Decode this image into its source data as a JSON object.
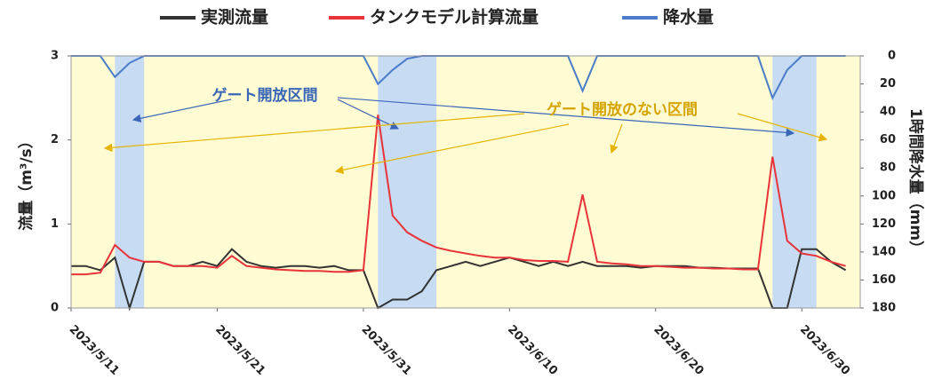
{
  "chart_data": {
    "type": "line",
    "series": [
      {
        "name": "実測流量",
        "color": "#333333",
        "values": [
          0.5,
          0.5,
          0.45,
          0.6,
          0.0,
          0.55,
          0.55,
          0.5,
          0.5,
          0.55,
          0.5,
          0.7,
          0.55,
          0.5,
          0.48,
          0.5,
          0.5,
          0.48,
          0.5,
          0.45,
          0.45,
          0.0,
          0.1,
          0.1,
          0.2,
          0.45,
          0.5,
          0.55,
          0.5,
          0.55,
          0.6,
          0.55,
          0.5,
          0.55,
          0.5,
          0.55,
          0.5,
          0.5,
          0.5,
          0.48,
          0.5,
          0.5,
          0.5,
          0.48,
          0.48,
          0.47,
          0.47,
          0.47,
          0.0,
          0.0,
          0.7,
          0.7,
          0.55,
          0.45
        ]
      },
      {
        "name": "タンクモデル計算流量",
        "color": "#e8333a",
        "values": [
          0.4,
          0.4,
          0.42,
          0.75,
          0.6,
          0.55,
          0.55,
          0.5,
          0.5,
          0.5,
          0.48,
          0.62,
          0.5,
          0.48,
          0.46,
          0.45,
          0.44,
          0.44,
          0.43,
          0.43,
          0.45,
          2.3,
          1.1,
          0.9,
          0.8,
          0.72,
          0.68,
          0.65,
          0.62,
          0.6,
          0.6,
          0.57,
          0.56,
          0.56,
          0.55,
          1.35,
          0.55,
          0.53,
          0.52,
          0.5,
          0.5,
          0.49,
          0.48,
          0.48,
          0.47,
          0.47,
          0.46,
          0.46,
          1.8,
          0.8,
          0.65,
          0.62,
          0.55,
          0.5
        ]
      },
      {
        "name": "降水量",
        "color": "#4a7cc9",
        "axis": "y2",
        "values": [
          0,
          0,
          0,
          15,
          5,
          0,
          0,
          0,
          0,
          0,
          0,
          0,
          0,
          0,
          0,
          0,
          0,
          0,
          0,
          0,
          0,
          20,
          10,
          2,
          0,
          0,
          0,
          0,
          0,
          0,
          0,
          0,
          0,
          0,
          0,
          25,
          0,
          0,
          0,
          0,
          0,
          0,
          0,
          0,
          0,
          0,
          0,
          0,
          30,
          10,
          0,
          0,
          0,
          0
        ]
      }
    ],
    "x": [
      "2023/5/11",
      "2023/5/12",
      "2023/5/13",
      "2023/5/14",
      "2023/5/15",
      "2023/5/16",
      "2023/5/17",
      "2023/5/18",
      "2023/5/19",
      "2023/5/20",
      "2023/5/21",
      "2023/5/22",
      "2023/5/23",
      "2023/5/24",
      "2023/5/25",
      "2023/5/26",
      "2023/5/27",
      "2023/5/28",
      "2023/5/29",
      "2023/5/30",
      "2023/5/31",
      "2023/6/1",
      "2023/6/2",
      "2023/6/3",
      "2023/6/4",
      "2023/6/5",
      "2023/6/6",
      "2023/6/7",
      "2023/6/8",
      "2023/6/9",
      "2023/6/10",
      "2023/6/11",
      "2023/6/12",
      "2023/6/13",
      "2023/6/14",
      "2023/6/15",
      "2023/6/16",
      "2023/6/17",
      "2023/6/18",
      "2023/6/19",
      "2023/6/20",
      "2023/6/21",
      "2023/6/22",
      "2023/6/23",
      "2023/6/24",
      "2023/6/25",
      "2023/6/26",
      "2023/6/27",
      "2023/6/28",
      "2023/6/29",
      "2023/6/30",
      "2023/7/1",
      "2023/7/2",
      "2023/7/3"
    ],
    "xlim": [
      "2023/5/11",
      "2023/7/4"
    ],
    "xticks": [
      "2023/5/11",
      "2023/5/21",
      "2023/5/31",
      "2023/6/10",
      "2023/6/20",
      "2023/6/30"
    ],
    "ylim": [
      0,
      3
    ],
    "yticks": [
      0,
      1,
      2,
      3
    ],
    "y2lim": [
      0,
      180
    ],
    "y2ticks": [
      0,
      20,
      40,
      60,
      80,
      100,
      120,
      140,
      160,
      180
    ],
    "y2_inverted": true,
    "ylabel": "流量（m³/s）",
    "y2label": "1時間降水量（mm）",
    "gate_open_periods": [
      {
        "start": "2023/5/14",
        "end": "2023/5/15"
      },
      {
        "start": "2023/6/1",
        "end": "2023/6/4"
      },
      {
        "start": "2023/6/28",
        "end": "2023/6/30"
      }
    ],
    "annotations": [
      "ゲート開放区間",
      "ゲート開放のない区間"
    ]
  }
}
